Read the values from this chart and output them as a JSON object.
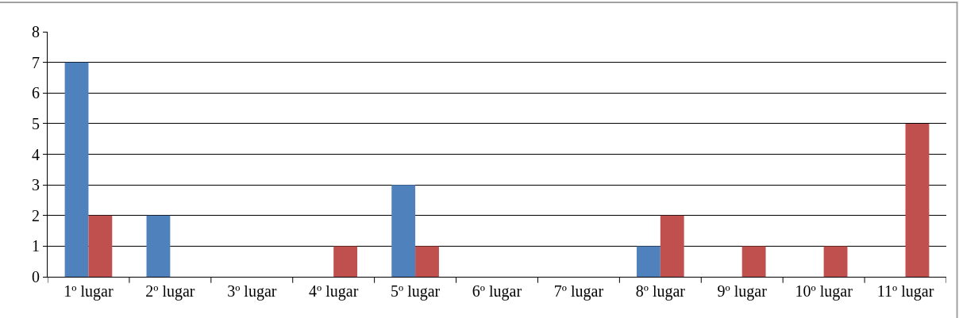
{
  "chart_data": {
    "type": "bar",
    "categories": [
      "1º lugar",
      "2º lugar",
      "3º lugar",
      "4º lugar",
      "5º lugar",
      "6º lugar",
      "7º lugar",
      "8º lugar",
      "9º lugar",
      "10º lugar",
      "11º lugar"
    ],
    "series": [
      {
        "color": "#4f81bd",
        "values": [
          7,
          2,
          0,
          0,
          3,
          0,
          0,
          1,
          0,
          0,
          0
        ]
      },
      {
        "color": "#c0504d",
        "values": [
          2,
          0,
          0,
          1,
          1,
          0,
          0,
          2,
          1,
          1,
          5
        ]
      }
    ],
    "ylim": [
      0,
      8
    ],
    "yticks": [
      0,
      1,
      2,
      3,
      4,
      5,
      6,
      7,
      8
    ],
    "grid": "y",
    "legend": false
  }
}
